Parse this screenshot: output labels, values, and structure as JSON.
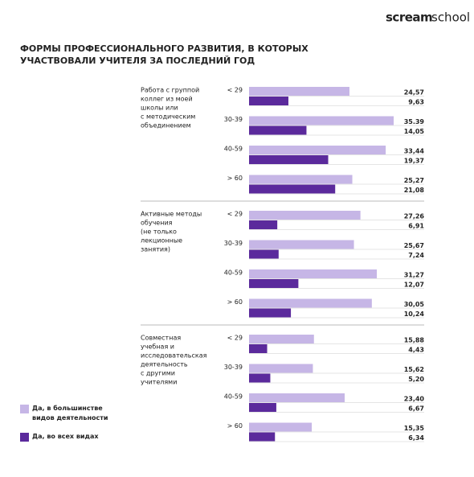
{
  "brand": {
    "first": "scream",
    "second": "school"
  },
  "chart_data": {
    "type": "bar",
    "orientation": "horizontal",
    "title": [
      "ФОРМЫ ПРОФЕССИОНАЛЬНОГО РАЗВИТИЯ, В КОТОРЫХ",
      "УЧАСТВОВАЛИ УЧИТЕЛЯ ЗА ПОСЛЕДНИЙ ГОД"
    ],
    "groups": [
      [
        "Работа с группой",
        "коллег из моей",
        "школы или",
        "с методическим",
        "объединением"
      ],
      [
        "Активные методы",
        "обучения",
        "(не только",
        "лекционные",
        "занятия)"
      ],
      [
        "Совместная",
        "учебная и",
        "исследовательская",
        "деятельность",
        "с другими",
        "учителями"
      ]
    ],
    "categories": [
      "< 29",
      "30-39",
      "40-59",
      "> 60",
      "< 29",
      "30-39",
      "40-59",
      "> 60",
      "< 29",
      "30-39",
      "40-59",
      "> 60"
    ],
    "series": [
      {
        "name": "Да, в большинстве видов деятельности",
        "color": "#c6b6e6",
        "values": [
          24.57,
          35.39,
          33.44,
          25.27,
          27.26,
          25.67,
          31.27,
          30.05,
          15.88,
          15.62,
          23.4,
          15.35
        ],
        "value_labels": [
          "24,57",
          "35.39",
          "33,44",
          "25,27",
          "27,26",
          "25,67",
          "31,27",
          "30,05",
          "15,88",
          "15,62",
          "23,40",
          "15,35"
        ]
      },
      {
        "name": "Да, во всех видах",
        "color": "#5b2a9c",
        "values": [
          9.63,
          14.05,
          19.37,
          21.08,
          6.91,
          7.24,
          12.07,
          10.24,
          4.43,
          5.2,
          6.67,
          6.34
        ],
        "value_labels": [
          "9,63",
          "14,05",
          "19,37",
          "21,08",
          "6,91",
          "7,24",
          "12,07",
          "10,24",
          "4,43",
          "5,20",
          "6,67",
          "6,34"
        ]
      }
    ]
  }
}
